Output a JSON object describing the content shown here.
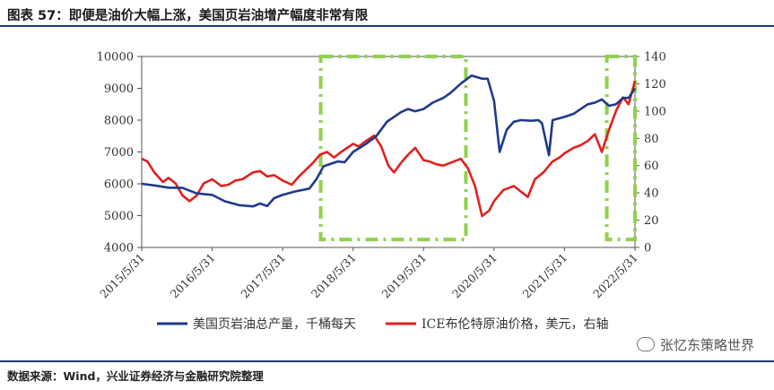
{
  "header": {
    "title": "图表 57：即便是油价大幅上涨，美国页岩油增产幅度非常有限"
  },
  "footer": {
    "source": "数据来源：Wind，兴业证券经济与金融研究院整理",
    "watermark": "张忆东策略世界"
  },
  "chart_data": {
    "type": "line",
    "x_tick_labels": [
      "2015/5/31",
      "2016/5/31",
      "2017/5/31",
      "2018/5/31",
      "2019/5/31",
      "2020/5/31",
      "2021/5/31",
      "2022/5/31"
    ],
    "left_axis": {
      "ylim": [
        4000,
        10000
      ],
      "ticks": [
        "4000",
        "5000",
        "6000",
        "7000",
        "8000",
        "9000",
        "10000"
      ]
    },
    "right_axis": {
      "ylim": [
        0,
        140
      ],
      "ticks": [
        "0",
        "20",
        "40",
        "60",
        "80",
        "100",
        "120",
        "140"
      ]
    },
    "colors": {
      "production": "#1f3a8a",
      "brent": "#e02020",
      "highlight": "#8fd14f"
    },
    "series": [
      {
        "name": "美国页岩油总产量，千桶每天",
        "axis": "left",
        "points": [
          [
            2015.42,
            6000
          ],
          [
            2015.6,
            5950
          ],
          [
            2015.8,
            5880
          ],
          [
            2016.0,
            5870
          ],
          [
            2016.2,
            5700
          ],
          [
            2016.42,
            5650
          ],
          [
            2016.6,
            5450
          ],
          [
            2016.8,
            5330
          ],
          [
            2017.0,
            5290
          ],
          [
            2017.1,
            5380
          ],
          [
            2017.2,
            5300
          ],
          [
            2017.3,
            5550
          ],
          [
            2017.42,
            5650
          ],
          [
            2017.6,
            5760
          ],
          [
            2017.8,
            5850
          ],
          [
            2017.9,
            6150
          ],
          [
            2018.0,
            6550
          ],
          [
            2018.2,
            6700
          ],
          [
            2018.3,
            6680
          ],
          [
            2018.42,
            7000
          ],
          [
            2018.6,
            7250
          ],
          [
            2018.75,
            7500
          ],
          [
            2018.9,
            7950
          ],
          [
            2019.1,
            8250
          ],
          [
            2019.2,
            8350
          ],
          [
            2019.3,
            8280
          ],
          [
            2019.42,
            8350
          ],
          [
            2019.55,
            8550
          ],
          [
            2019.7,
            8700
          ],
          [
            2019.8,
            8850
          ],
          [
            2019.95,
            9150
          ],
          [
            2020.1,
            9400
          ],
          [
            2020.25,
            9300
          ],
          [
            2020.33,
            9300
          ],
          [
            2020.42,
            8600
          ],
          [
            2020.5,
            7000
          ],
          [
            2020.6,
            7700
          ],
          [
            2020.7,
            7950
          ],
          [
            2020.8,
            8000
          ],
          [
            2020.95,
            7980
          ],
          [
            2021.05,
            8000
          ],
          [
            2021.1,
            7900
          ],
          [
            2021.2,
            6900
          ],
          [
            2021.25,
            8000
          ],
          [
            2021.42,
            8100
          ],
          [
            2021.55,
            8200
          ],
          [
            2021.65,
            8350
          ],
          [
            2021.75,
            8500
          ],
          [
            2021.85,
            8550
          ],
          [
            2021.95,
            8650
          ],
          [
            2022.05,
            8450
          ],
          [
            2022.15,
            8500
          ],
          [
            2022.25,
            8700
          ],
          [
            2022.33,
            8700
          ],
          [
            2022.42,
            9000
          ]
        ]
      },
      {
        "name": "ICE布伦特原油价格，美元，右轴",
        "axis": "right",
        "points": [
          [
            2015.42,
            65
          ],
          [
            2015.5,
            63
          ],
          [
            2015.6,
            55
          ],
          [
            2015.72,
            48
          ],
          [
            2015.8,
            51
          ],
          [
            2015.9,
            47
          ],
          [
            2016.0,
            38
          ],
          [
            2016.1,
            34
          ],
          [
            2016.2,
            38
          ],
          [
            2016.3,
            47
          ],
          [
            2016.42,
            50
          ],
          [
            2016.55,
            45
          ],
          [
            2016.65,
            46
          ],
          [
            2016.75,
            49
          ],
          [
            2016.85,
            50
          ],
          [
            2017.0,
            55
          ],
          [
            2017.1,
            56
          ],
          [
            2017.2,
            52
          ],
          [
            2017.3,
            53
          ],
          [
            2017.42,
            49
          ],
          [
            2017.55,
            46
          ],
          [
            2017.65,
            52
          ],
          [
            2017.75,
            57
          ],
          [
            2017.85,
            62
          ],
          [
            2017.95,
            68
          ],
          [
            2018.05,
            70
          ],
          [
            2018.15,
            66
          ],
          [
            2018.25,
            70
          ],
          [
            2018.42,
            76
          ],
          [
            2018.5,
            74
          ],
          [
            2018.6,
            78
          ],
          [
            2018.72,
            82
          ],
          [
            2018.82,
            74
          ],
          [
            2018.92,
            60
          ],
          [
            2019.0,
            55
          ],
          [
            2019.1,
            62
          ],
          [
            2019.2,
            68
          ],
          [
            2019.3,
            73
          ],
          [
            2019.42,
            64
          ],
          [
            2019.5,
            63
          ],
          [
            2019.6,
            61
          ],
          [
            2019.7,
            60
          ],
          [
            2019.8,
            62
          ],
          [
            2019.95,
            65
          ],
          [
            2020.05,
            58
          ],
          [
            2020.15,
            45
          ],
          [
            2020.25,
            23
          ],
          [
            2020.35,
            27
          ],
          [
            2020.42,
            34
          ],
          [
            2020.55,
            42
          ],
          [
            2020.7,
            45
          ],
          [
            2020.8,
            41
          ],
          [
            2020.9,
            37
          ],
          [
            2021.0,
            50
          ],
          [
            2021.12,
            55
          ],
          [
            2021.25,
            63
          ],
          [
            2021.35,
            66
          ],
          [
            2021.42,
            69
          ],
          [
            2021.55,
            73
          ],
          [
            2021.65,
            75
          ],
          [
            2021.75,
            78
          ],
          [
            2021.85,
            83
          ],
          [
            2021.95,
            70
          ],
          [
            2022.05,
            86
          ],
          [
            2022.15,
            100
          ],
          [
            2022.25,
            110
          ],
          [
            2022.33,
            105
          ],
          [
            2022.42,
            122
          ]
        ]
      }
    ],
    "highlight_boxes": [
      {
        "x": [
          2017.96,
          2020.02
        ],
        "y": [
          4250,
          10000
        ]
      },
      {
        "x": [
          2022.02,
          2022.42
        ],
        "y": [
          4250,
          10000
        ]
      }
    ]
  }
}
